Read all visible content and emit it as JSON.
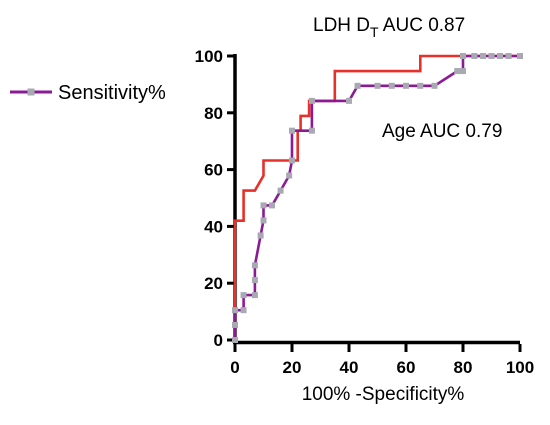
{
  "chart_data": {
    "type": "line",
    "xlabel": "100% -Specificity%",
    "ylabel": "",
    "xlim": [
      0,
      100
    ],
    "ylim": [
      0,
      100
    ],
    "xticks": [
      "0",
      "20",
      "40",
      "60",
      "80",
      "100"
    ],
    "yticks": [
      "0",
      "20",
      "40",
      "60",
      "80",
      "100"
    ],
    "legend": {
      "placement": "left",
      "entries": [
        {
          "label": "Sensitivity%",
          "color": "#8b1a96"
        }
      ]
    },
    "annotations": {
      "ldh_prefix": "LDH D",
      "ldh_sub": "T",
      "ldh_suffix": " AUC 0.87",
      "age": "Age AUC 0.79"
    },
    "series": [
      {
        "color": "#e8302a",
        "marker": "none",
        "points": [
          [
            0,
            0
          ],
          [
            0,
            42
          ],
          [
            3,
            42
          ],
          [
            3,
            52.6
          ],
          [
            7,
            52.6
          ],
          [
            10,
            57.9
          ],
          [
            10,
            63.2
          ],
          [
            22,
            63.2
          ],
          [
            22,
            73.7
          ],
          [
            23,
            73.7
          ],
          [
            23,
            78.9
          ],
          [
            26,
            78.9
          ],
          [
            26,
            84.2
          ],
          [
            35,
            84.2
          ],
          [
            35,
            94.7
          ],
          [
            65,
            94.7
          ],
          [
            65,
            100
          ],
          [
            100,
            100
          ]
        ]
      },
      {
        "name": "Sensitivity%",
        "color": "#8b1a96",
        "marker": "square",
        "marker_color": "#a9a9b4",
        "points": [
          [
            0,
            0
          ],
          [
            0,
            5.3
          ],
          [
            0,
            10.5
          ],
          [
            3,
            10.5
          ],
          [
            3,
            15.8
          ],
          [
            7,
            15.8
          ],
          [
            7,
            21.1
          ],
          [
            7,
            26.3
          ],
          [
            9,
            36.8
          ],
          [
            10,
            42.1
          ],
          [
            10,
            47.4
          ],
          [
            13,
            47.4
          ],
          [
            16,
            52.6
          ],
          [
            19,
            57.9
          ],
          [
            20,
            63.2
          ],
          [
            20,
            73.7
          ],
          [
            27,
            73.7
          ],
          [
            27,
            84.2
          ],
          [
            40,
            84.2
          ],
          [
            43,
            89.5
          ],
          [
            50,
            89.5
          ],
          [
            55,
            89.5
          ],
          [
            60,
            89.5
          ],
          [
            65,
            89.5
          ],
          [
            70,
            89.5
          ],
          [
            78,
            94.7
          ],
          [
            80,
            94.7
          ],
          [
            80,
            100
          ],
          [
            84,
            100
          ],
          [
            87,
            100
          ],
          [
            90,
            100
          ],
          [
            93,
            100
          ],
          [
            96,
            100
          ],
          [
            100,
            100
          ]
        ]
      }
    ]
  }
}
